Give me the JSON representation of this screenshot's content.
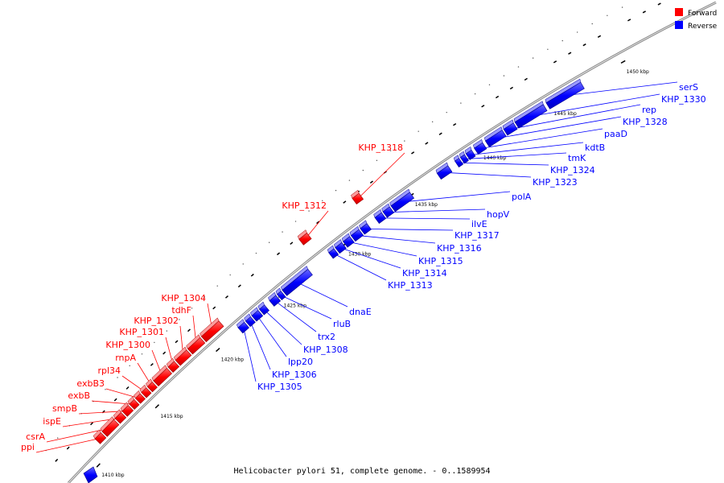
{
  "caption": "Helicobacter pylori 51, complete genome. - 0..1589954",
  "legend": [
    {
      "label": "Forward",
      "color": "#ff0000"
    },
    {
      "label": "Reverse",
      "color": "#0000ff"
    }
  ],
  "colors": {
    "forward": "#ff0000",
    "reverse": "#0000ff",
    "backbone": "#888888"
  },
  "ticks": [
    "1410 kbp",
    "1415 kbp",
    "1420 kbp",
    "1425 kbp",
    "1430 kbp",
    "1435 kbp",
    "1440 kbp",
    "1445 kbp",
    "1450 kbp"
  ],
  "forward_genes": [
    "ppi",
    "csrA",
    "ispE",
    "smpB",
    "exbB",
    "exbB3",
    "rpl34",
    "rnpA",
    "KHP_1300",
    "KHP_1301",
    "KHP_1302",
    "tdhF",
    "KHP_1304",
    "KHP_1312",
    "KHP_1318"
  ],
  "reverse_genes": [
    "KHP_1305",
    "KHP_1306",
    "lpp20",
    "KHP_1308",
    "trx2",
    "rluB",
    "dnaE",
    "KHP_1313",
    "KHP_1314",
    "KHP_1315",
    "KHP_1316",
    "KHP_1317",
    "ilvE",
    "hopV",
    "polA",
    "KHP_1323",
    "KHP_1324",
    "tmK",
    "kdtB",
    "paaD",
    "KHP_1328",
    "rep",
    "KHP_1330",
    "serS"
  ]
}
